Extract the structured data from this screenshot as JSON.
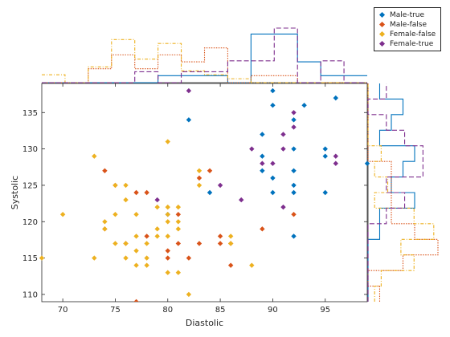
{
  "chart_data": {
    "type": "scatter",
    "xlabel": "Diastolic",
    "ylabel": "Systolic",
    "xlim": [
      68,
      99
    ],
    "ylim": [
      109,
      139
    ],
    "xticks": [
      70,
      75,
      80,
      85,
      90,
      95
    ],
    "yticks": [
      110,
      115,
      120,
      125,
      130,
      135
    ],
    "legend_position": "top-right",
    "marginal_histograms": "top and right, stairs style",
    "series": [
      {
        "name": "Male-true",
        "color": "#0072BD",
        "x": [
          80,
          82,
          84,
          89,
          89,
          89,
          90,
          90,
          90,
          90,
          92,
          92,
          92,
          92,
          92,
          92,
          93,
          95,
          95,
          95,
          96,
          99
        ],
        "y": [
          121,
          134,
          124,
          132,
          129,
          127,
          138,
          136,
          126,
          124,
          134,
          130,
          127,
          125,
          124,
          118,
          136,
          130,
          129,
          124,
          137,
          128
        ]
      },
      {
        "name": "Male-false",
        "color": "#D95319",
        "x": [
          74,
          74,
          75,
          76,
          77,
          77,
          78,
          78,
          80,
          80,
          81,
          81,
          82,
          83,
          83,
          84,
          85,
          85,
          86,
          86,
          89,
          92
        ],
        "y": [
          127,
          119,
          125,
          117,
          109,
          124,
          118,
          124,
          116,
          115,
          121,
          117,
          115,
          117,
          126,
          127,
          118,
          117,
          117,
          114,
          119,
          121
        ]
      },
      {
        "name": "Female-false",
        "color": "#EDB120",
        "x": [
          68,
          70,
          73,
          73,
          74,
          74,
          75,
          75,
          75,
          76,
          76,
          76,
          76,
          77,
          77,
          77,
          77,
          78,
          78,
          78,
          79,
          79,
          79,
          80,
          80,
          80,
          80,
          80,
          80,
          81,
          81,
          81,
          81,
          82,
          83,
          83,
          86,
          86,
          88
        ],
        "y": [
          115,
          121,
          115,
          129,
          120,
          119,
          121,
          117,
          125,
          125,
          123,
          117,
          115,
          121,
          118,
          116,
          114,
          117,
          115,
          114,
          122,
          119,
          118,
          131,
          122,
          121,
          120,
          118,
          113,
          122,
          120,
          119,
          113,
          110,
          127,
          125,
          118,
          117,
          114
        ]
      },
      {
        "name": "Female-true",
        "color": "#7E2F8E",
        "x": [
          79,
          82,
          85,
          87,
          88,
          89,
          90,
          91,
          91,
          91,
          92,
          92,
          96,
          96
        ],
        "y": [
          123,
          138,
          125,
          123,
          130,
          128,
          128,
          132,
          130,
          122,
          135,
          133,
          129,
          128
        ]
      }
    ]
  }
}
